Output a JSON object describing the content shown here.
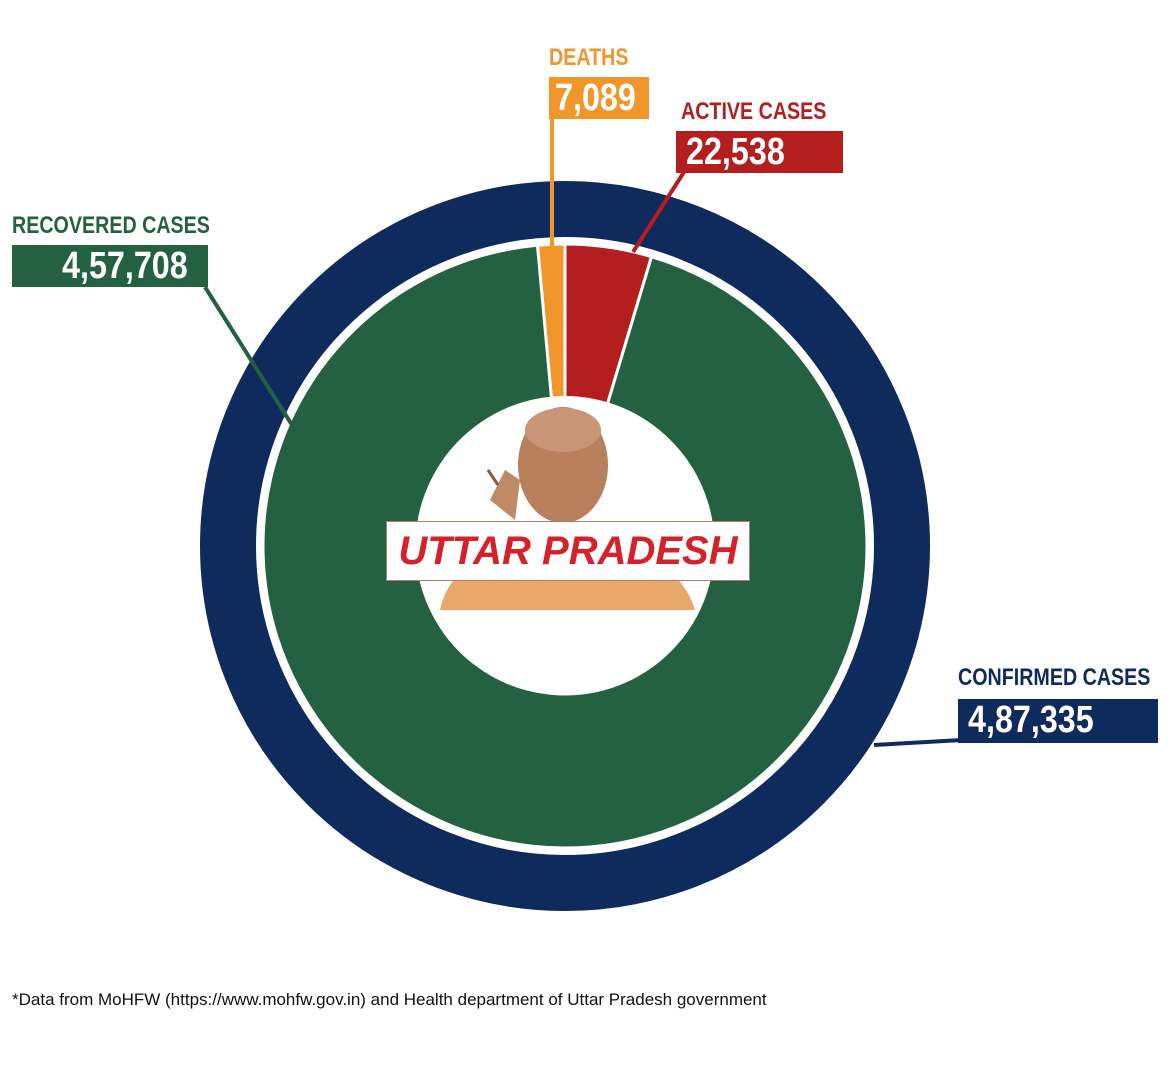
{
  "chart_data": {
    "type": "pie",
    "variant": "donut",
    "title": "UTTAR PRADESH",
    "series": [
      {
        "name": "DEATHS",
        "value": 7089,
        "display": "7,089",
        "color": "#F0962A"
      },
      {
        "name": "ACTIVE CASES",
        "value": 22538,
        "display": "22,538",
        "color": "#B41E1E"
      },
      {
        "name": "RECOVERED CASES",
        "value": 457708,
        "display": "4,57,708",
        "color": "#236140"
      }
    ],
    "total": {
      "name": "CONFIRMED CASES",
      "value": 487335,
      "display": "4,87,335",
      "color": "#0F2A5C"
    },
    "footnote": "*Data from MoHFW (https://www.mohfw.gov.in) and Health department of Uttar Pradesh government"
  }
}
